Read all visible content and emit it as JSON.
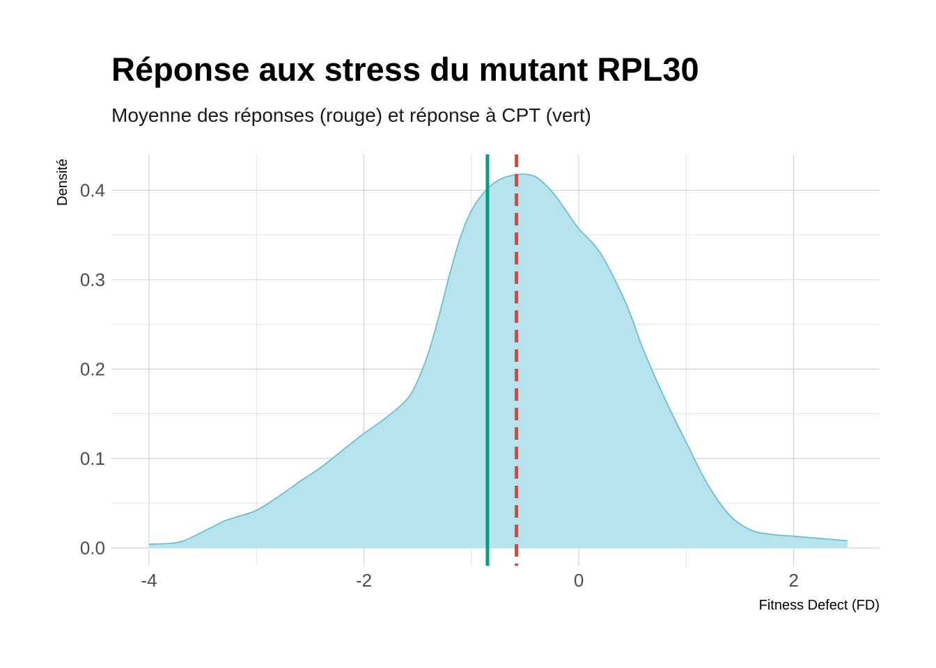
{
  "chart_data": {
    "type": "area",
    "title": "Réponse aux stress du mutant RPL30",
    "subtitle": "Moyenne des réponses (rouge) et réponse à CPT (vert)",
    "xlabel": "Fitness Defect (FD)",
    "ylabel": "Densité",
    "xlim": [
      -4.35,
      2.8
    ],
    "ylim": [
      -0.02,
      0.44
    ],
    "x_ticks": [
      -4,
      -2,
      0,
      2
    ],
    "x_tick_labels": [
      "-4",
      "-2",
      "0",
      "2"
    ],
    "y_ticks": [
      0.0,
      0.1,
      0.2,
      0.3,
      0.4
    ],
    "y_tick_labels": [
      "0.0",
      "0.1",
      "0.2",
      "0.3",
      "0.4"
    ],
    "grid": true,
    "series": [
      {
        "x": [
          -4.0,
          -3.8,
          -3.7,
          -3.6,
          -3.5,
          -3.4,
          -3.3,
          -3.2,
          -3.0,
          -2.8,
          -2.6,
          -2.4,
          -2.2,
          -2.0,
          -1.8,
          -1.6,
          -1.5,
          -1.4,
          -1.3,
          -1.2,
          -1.1,
          -1.0,
          -0.9,
          -0.8,
          -0.7,
          -0.6,
          -0.5,
          -0.4,
          -0.3,
          -0.2,
          -0.1,
          0.0,
          0.2,
          0.4,
          0.5,
          0.6,
          0.8,
          1.0,
          1.2,
          1.4,
          1.6,
          1.8,
          2.0,
          2.2,
          2.5
        ],
        "y": [
          0.004,
          0.005,
          0.007,
          0.012,
          0.018,
          0.024,
          0.03,
          0.034,
          0.042,
          0.057,
          0.074,
          0.09,
          0.109,
          0.128,
          0.145,
          0.166,
          0.187,
          0.218,
          0.26,
          0.307,
          0.348,
          0.377,
          0.395,
          0.407,
          0.414,
          0.417,
          0.418,
          0.415,
          0.405,
          0.391,
          0.374,
          0.357,
          0.33,
          0.284,
          0.255,
          0.222,
          0.167,
          0.118,
          0.071,
          0.037,
          0.02,
          0.015,
          0.013,
          0.011,
          0.008
        ]
      }
    ],
    "vlines": [
      {
        "x": -0.85,
        "color": "#009E86",
        "style": "solid"
      },
      {
        "x": -0.58,
        "color": "#E0433A",
        "style": "dashed"
      }
    ],
    "colors": {
      "fill": "#B7E3EC",
      "line": "#5BBBD4",
      "grid": "#D0D0D0"
    }
  }
}
